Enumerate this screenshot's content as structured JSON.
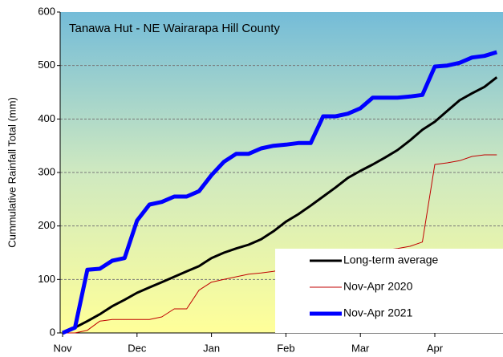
{
  "chart_data": {
    "type": "line",
    "title": "Tanawa Hut - NE Wairarapa Hill County",
    "y_label": "Cummulative Rainfall Total (mm)",
    "categories": [
      "Nov",
      null,
      null,
      null,
      null,
      null,
      "Dec",
      null,
      null,
      null,
      null,
      null,
      "Jan",
      null,
      null,
      null,
      null,
      null,
      "Feb",
      null,
      null,
      null,
      null,
      null,
      "Mar",
      null,
      null,
      null,
      null,
      null,
      "Apr",
      null,
      null,
      null,
      null,
      null
    ],
    "series": [
      {
        "name": "Long-term average",
        "color": "#000000",
        "line_width": 3,
        "values": [
          0,
          10,
          22,
          35,
          50,
          62,
          75,
          85,
          95,
          105,
          115,
          125,
          140,
          150,
          158,
          165,
          175,
          190,
          208,
          222,
          238,
          255,
          272,
          290,
          303,
          315,
          328,
          342,
          360,
          380,
          395,
          415,
          435,
          448,
          460,
          478
        ]
      },
      {
        "name": "Nov-Apr 2020",
        "color": "#c00000",
        "line_width": 1,
        "values": [
          0,
          0,
          5,
          22,
          25,
          25,
          25,
          25,
          30,
          45,
          45,
          80,
          95,
          100,
          105,
          110,
          112,
          115,
          120,
          125,
          128,
          135,
          140,
          145,
          150,
          152,
          155,
          158,
          162,
          170,
          315,
          318,
          322,
          330,
          333,
          333
        ]
      },
      {
        "name": "Nov-Apr 2021",
        "color": "#0000ff",
        "line_width": 5,
        "values": [
          0,
          10,
          118,
          120,
          135,
          140,
          210,
          240,
          245,
          255,
          255,
          265,
          295,
          320,
          335,
          335,
          345,
          350,
          352,
          355,
          355,
          405,
          405,
          410,
          420,
          440,
          440,
          440,
          442,
          445,
          498,
          500,
          505,
          515,
          518,
          525
        ]
      }
    ],
    "ylim": [
      0,
      600
    ],
    "yticks": [
      0,
      100,
      200,
      300,
      400,
      500,
      600
    ],
    "grid": true,
    "legend": "lower right"
  }
}
